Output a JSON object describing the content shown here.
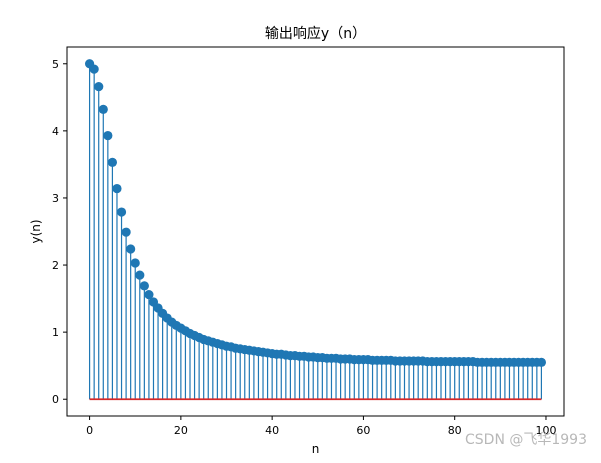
{
  "chart_data": {
    "type": "stem",
    "title": "输出响应y（n）",
    "xlabel": "n",
    "ylabel": "y(n)",
    "xlim": [
      -4.95,
      103.95
    ],
    "ylim": [
      -0.25,
      5.25
    ],
    "xticks": [
      0,
      20,
      40,
      60,
      80,
      100
    ],
    "yticks": [
      0,
      1,
      2,
      3,
      4,
      5
    ],
    "xtick_labels": [
      "0",
      "20",
      "40",
      "60",
      "80",
      "100"
    ],
    "ytick_labels": [
      "0",
      "1",
      "2",
      "3",
      "4",
      "5"
    ],
    "grid": false,
    "series": [
      {
        "marker_color": "#1f77b4",
        "stem_color": "#1f77b4",
        "baseline_color": "#d62728",
        "baseline": 0,
        "x": [
          0,
          1,
          2,
          3,
          4,
          5,
          6,
          7,
          8,
          9,
          10,
          11,
          12,
          13,
          14,
          15,
          16,
          17,
          18,
          19,
          20,
          21,
          22,
          23,
          24,
          25,
          26,
          27,
          28,
          29,
          30,
          31,
          32,
          33,
          34,
          35,
          36,
          37,
          38,
          39,
          40,
          41,
          42,
          43,
          44,
          45,
          46,
          47,
          48,
          49,
          50,
          51,
          52,
          53,
          54,
          55,
          56,
          57,
          58,
          59,
          60,
          61,
          62,
          63,
          64,
          65,
          66,
          67,
          68,
          69,
          70,
          71,
          72,
          73,
          74,
          75,
          76,
          77,
          78,
          79,
          80,
          81,
          82,
          83,
          84,
          85,
          86,
          87,
          88,
          89,
          90,
          91,
          92,
          93,
          94,
          95,
          96,
          97,
          98,
          99
        ],
        "y": [
          5.0,
          4.92,
          4.66,
          4.32,
          3.93,
          3.53,
          3.14,
          2.79,
          2.49,
          2.24,
          2.03,
          1.85,
          1.69,
          1.56,
          1.45,
          1.36,
          1.28,
          1.21,
          1.15,
          1.1,
          1.06,
          1.02,
          0.98,
          0.95,
          0.92,
          0.89,
          0.87,
          0.85,
          0.83,
          0.81,
          0.79,
          0.78,
          0.76,
          0.75,
          0.74,
          0.73,
          0.72,
          0.71,
          0.7,
          0.69,
          0.68,
          0.67,
          0.67,
          0.66,
          0.65,
          0.65,
          0.64,
          0.64,
          0.63,
          0.63,
          0.62,
          0.62,
          0.61,
          0.61,
          0.61,
          0.6,
          0.6,
          0.6,
          0.59,
          0.59,
          0.59,
          0.59,
          0.58,
          0.58,
          0.58,
          0.58,
          0.58,
          0.57,
          0.57,
          0.57,
          0.57,
          0.57,
          0.57,
          0.57,
          0.56,
          0.56,
          0.56,
          0.56,
          0.56,
          0.56,
          0.56,
          0.56,
          0.56,
          0.56,
          0.56,
          0.55,
          0.55,
          0.55,
          0.55,
          0.55,
          0.55,
          0.55,
          0.55,
          0.55,
          0.55,
          0.55,
          0.55,
          0.55,
          0.55,
          0.55
        ]
      }
    ]
  },
  "watermark": "CSDN @飞华1993"
}
